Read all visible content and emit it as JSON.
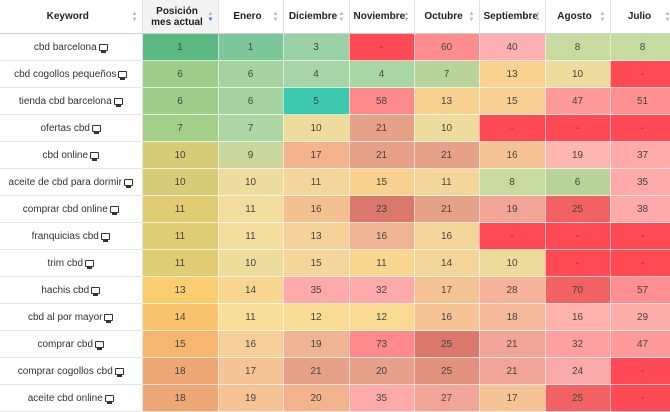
{
  "headers": {
    "keyword": "Keyword",
    "position": "Posición mes actual",
    "months": [
      "Enero",
      "Diciembre",
      "Noviembre",
      "Octubre",
      "Septiembre",
      "Agosto",
      "Julio"
    ]
  },
  "rows": [
    {
      "keyword": "cbd barcelona",
      "position": "1",
      "months": [
        "1",
        "3",
        "-",
        "60",
        "40",
        "8",
        "8"
      ],
      "colors": [
        "#5bb882",
        "#7dc79b",
        "#9bd1a6",
        "#ff4a55",
        "#ff8d8d",
        "#ffb0b0",
        "#c7dba0",
        "#c6dba0"
      ]
    },
    {
      "keyword": "cbd cogollos pequeños",
      "position": "6",
      "months": [
        "6",
        "4",
        "4",
        "7",
        "13",
        "10",
        "-"
      ],
      "colors": [
        "#9fce8a",
        "#a4d3a0",
        "#a6d6a8",
        "#a9d7a3",
        "#b8d49a",
        "#f8d28e",
        "#eedc9d",
        "#ff4a55"
      ]
    },
    {
      "keyword": "tienda cbd barcelona",
      "position": "6",
      "months": [
        "6",
        "5",
        "58",
        "13",
        "15",
        "47",
        "51"
      ],
      "colors": [
        "#9fce8a",
        "#a4d3a0",
        "#3cc9ae",
        "#ff8a8c",
        "#f8d18e",
        "#f8cf92",
        "#ff9a9a",
        "#ff8f90"
      ]
    },
    {
      "keyword": "ofertas cbd",
      "position": "7",
      "months": [
        "7",
        "10",
        "21",
        "10",
        "-",
        "-",
        "-"
      ],
      "colors": [
        "#a4cf88",
        "#aed6a4",
        "#eedc9d",
        "#e6a189",
        "#eedc9d",
        "#ff4a55",
        "#ff4a55",
        "#ff4a55"
      ]
    },
    {
      "keyword": "cbd online",
      "position": "10",
      "months": [
        "9",
        "17",
        "21",
        "21",
        "16",
        "19",
        "37"
      ],
      "colors": [
        "#d6cc78",
        "#c9d69c",
        "#f3b48d",
        "#e6a189",
        "#e6a189",
        "#f5c394",
        "#ffb6b0",
        "#ffaaaa"
      ]
    },
    {
      "keyword": "aceite de cbd para dormir",
      "position": "10",
      "months": [
        "10",
        "11",
        "15",
        "11",
        "8",
        "6",
        "35"
      ],
      "colors": [
        "#d6cc78",
        "#eedc9d",
        "#f5d69a",
        "#f8d18e",
        "#f5d69a",
        "#c7dba0",
        "#b8d49a",
        "#ffaaaa"
      ]
    },
    {
      "keyword": "comprar cbd online",
      "position": "11",
      "months": [
        "11",
        "16",
        "23",
        "21",
        "19",
        "25",
        "38"
      ],
      "colors": [
        "#e0cd73",
        "#f3dd9d",
        "#f3c08f",
        "#d9786b",
        "#e6a189",
        "#f0a596",
        "#f26262",
        "#ffaaaa"
      ]
    },
    {
      "keyword": "franquicias cbd",
      "position": "11",
      "months": [
        "11",
        "13",
        "16",
        "16",
        "-",
        "-",
        "-"
      ],
      "colors": [
        "#e0cd73",
        "#f3dd9d",
        "#f5d29a",
        "#f0b393",
        "#f5d69a",
        "#ff4a55",
        "#ff4a55",
        "#ff4a55"
      ]
    },
    {
      "keyword": "trim cbd",
      "position": "11",
      "months": [
        "10",
        "15",
        "11",
        "14",
        "10",
        "-",
        "-"
      ],
      "colors": [
        "#e0cd73",
        "#eedc9d",
        "#f5d69a",
        "#f8d690",
        "#f5d69a",
        "#eedc9d",
        "#ff4a55",
        "#ff4a55"
      ]
    },
    {
      "keyword": "hachis cbd",
      "position": "13",
      "months": [
        "14",
        "35",
        "32",
        "17",
        "28",
        "70",
        "57"
      ],
      "colors": [
        "#f9cd70",
        "#f8d690",
        "#ffaaaa",
        "#ffaaaa",
        "#f5c394",
        "#f8b49a",
        "#f26262",
        "#ff8f90"
      ]
    },
    {
      "keyword": "cbd al por mayor",
      "position": "14",
      "months": [
        "11",
        "12",
        "12",
        "16",
        "18",
        "16",
        "29"
      ],
      "colors": [
        "#f9c46d",
        "#f8de98",
        "#f8dc96",
        "#f8da92",
        "#f5c394",
        "#f5b999",
        "#ffb3ac",
        "#ffadab"
      ]
    },
    {
      "keyword": "comprar cbd",
      "position": "15",
      "months": [
        "16",
        "19",
        "73",
        "25",
        "21",
        "32",
        "47"
      ],
      "colors": [
        "#f5b770",
        "#f5cf97",
        "#f0b393",
        "#ff8a8c",
        "#d9786b",
        "#f0a596",
        "#ff9f9f",
        "#ff9a9a"
      ]
    },
    {
      "keyword": "comprar cogollos cbd",
      "position": "18",
      "months": [
        "17",
        "21",
        "20",
        "25",
        "21",
        "24",
        "-"
      ],
      "colors": [
        "#eda875",
        "#f5c394",
        "#e6a189",
        "#e6a189",
        "#e2917f",
        "#f0a596",
        "#f8a9a9",
        "#ff4a55"
      ]
    },
    {
      "keyword": "aceite cbd online",
      "position": "18",
      "months": [
        "19",
        "20",
        "35",
        "27",
        "17",
        "25",
        "-"
      ],
      "colors": [
        "#eda875",
        "#f5c394",
        "#f3b48d",
        "#ffaaaa",
        "#f0a596",
        "#f5c394",
        "#f26262",
        "#ff4a55"
      ]
    }
  ]
}
